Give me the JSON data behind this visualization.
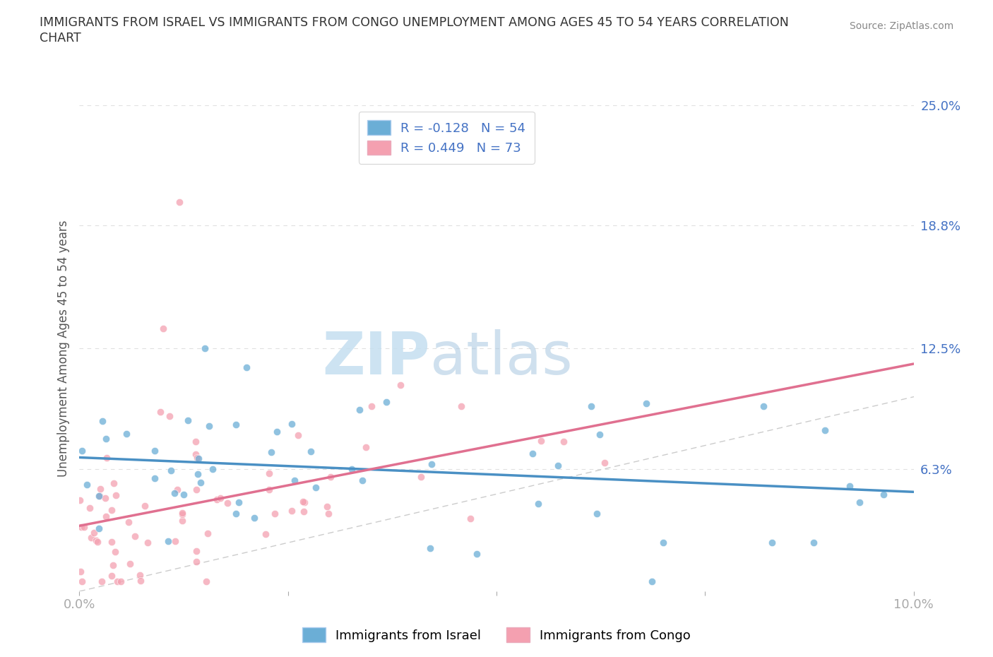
{
  "title_line1": "IMMIGRANTS FROM ISRAEL VS IMMIGRANTS FROM CONGO UNEMPLOYMENT AMONG AGES 45 TO 54 YEARS CORRELATION",
  "title_line2": "CHART",
  "source_text": "Source: ZipAtlas.com",
  "ylabel_label": "Unemployment Among Ages 45 to 54 years",
  "x_min": 0.0,
  "x_max": 0.1,
  "y_min": 0.0,
  "y_max": 0.25,
  "israel_color": "#6baed6",
  "israel_edge": "#4a90c4",
  "congo_color": "#f4a0b0",
  "congo_edge": "#e07090",
  "trend_israel_color": "#4a90c4",
  "trend_congo_color": "#e07090",
  "diagonal_color": "#cccccc",
  "watermark_color": "#d0e8f5",
  "grid_color": "#e0e0e0",
  "legend_israel_label": "R = -0.128   N = 54",
  "legend_congo_label": "R = 0.449   N = 73",
  "bottom_legend_israel": "Immigrants from Israel",
  "bottom_legend_congo": "Immigrants from Congo"
}
